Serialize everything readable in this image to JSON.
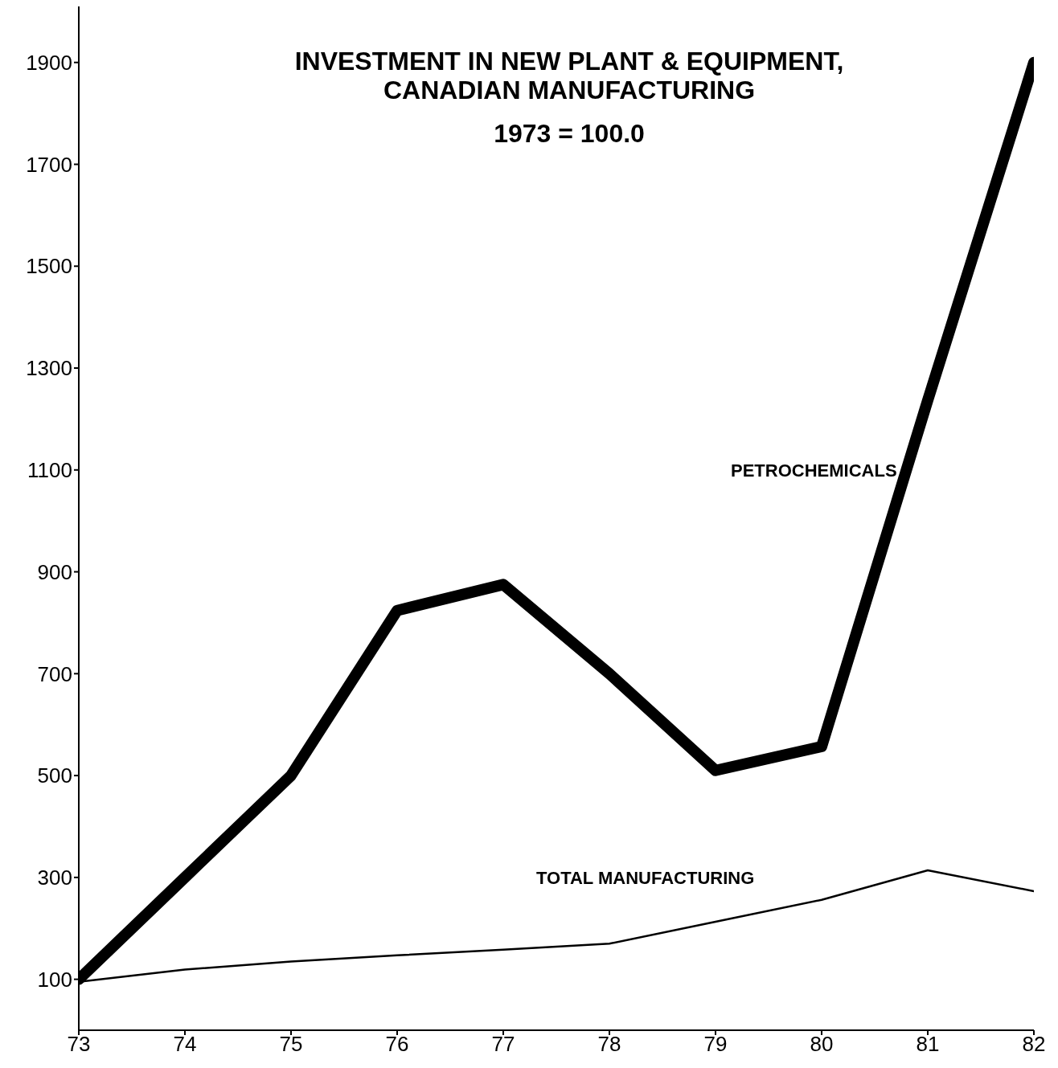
{
  "chart_data": {
    "type": "line",
    "title": "INVESTMENT IN NEW PLANT & EQUIPMENT,\nCANADIAN MANUFACTURING",
    "subtitle": "1973 = 100.0",
    "x": [
      73,
      74,
      75,
      76,
      77,
      78,
      79,
      80,
      81,
      82
    ],
    "series": [
      {
        "name": "PETROCHEMICALS",
        "color": "#000000",
        "values": [
          100,
          300,
          500,
          824,
          875,
          700,
          510,
          557,
          1237,
          1900
        ]
      },
      {
        "name": "TOTAL MANUFACTURING",
        "color": "#000000",
        "values": [
          95,
          119,
          135,
          147,
          158,
          170,
          213,
          256,
          314,
          273
        ]
      }
    ],
    "xlim": [
      73,
      82
    ],
    "xticks": [
      73,
      74,
      75,
      76,
      77,
      78,
      79,
      80,
      81,
      82
    ],
    "ylim": [
      0,
      2010
    ],
    "yticks": [
      100,
      300,
      500,
      700,
      900,
      1100,
      1300,
      1500,
      1700,
      1900
    ],
    "marker": "none",
    "line_style": "solid"
  }
}
